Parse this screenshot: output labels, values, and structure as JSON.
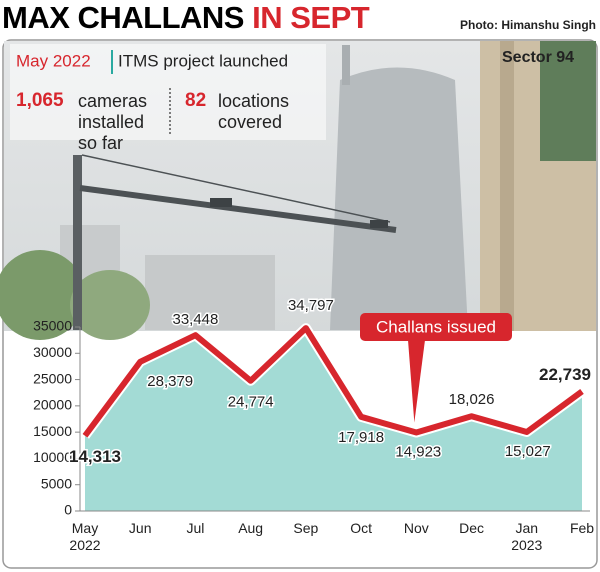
{
  "header": {
    "title": "MAX CHALLANS",
    "title_highlight": "IN SEPT",
    "photo_credit": "Photo: Himanshu Singh",
    "location": "Sector 94"
  },
  "info": {
    "date": "May 2022",
    "event": "ITMS project launched",
    "cameras": "1,065",
    "cameras_text": "cameras installed so far",
    "locations": "82",
    "locations_text": "locations covered"
  },
  "chart_data": {
    "type": "line",
    "categories": [
      "May 2022",
      "Jun",
      "Jul",
      "Aug",
      "Sep",
      "Oct",
      "Nov",
      "Dec",
      "Jan 2023",
      "Feb"
    ],
    "series": [
      {
        "name": "Challans issued",
        "color": "#d7262d",
        "values": [
          14313,
          28379,
          33448,
          24774,
          34797,
          17918,
          14923,
          18026,
          15027,
          22739
        ],
        "value_labels": [
          "14,313",
          "28,379",
          "33,448",
          "24,774",
          "34,797",
          "17,918",
          "14,923",
          "18,026",
          "15,027",
          "22,739"
        ]
      }
    ],
    "area_color": "#a3dbd5",
    "ylim": [
      0,
      35000
    ],
    "yticks": [
      0,
      5000,
      10000,
      15000,
      20000,
      25000,
      30000,
      35000
    ],
    "grid": false
  }
}
